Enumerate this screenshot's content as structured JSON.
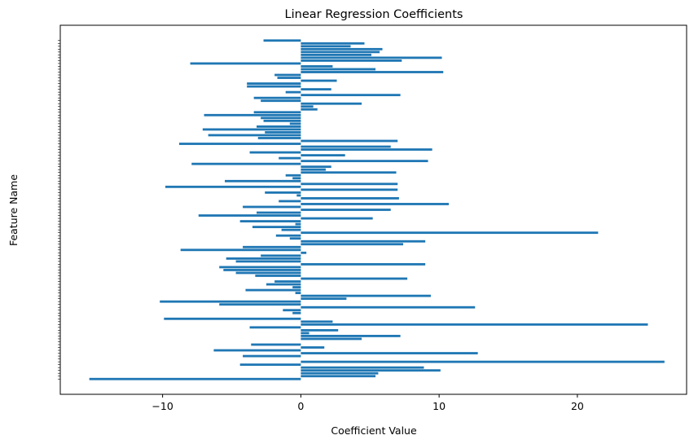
{
  "chart_data": {
    "type": "bar",
    "orientation": "horizontal",
    "title": "Linear Regression Coefficients",
    "xlabel": "Coefficient Value",
    "ylabel": "Feature Name",
    "xlim": [
      -17.4,
      27.9
    ],
    "xticks": [
      -10,
      0,
      10,
      20
    ],
    "xtick_labels": [
      "−10",
      "0",
      "10",
      "20"
    ],
    "bar_color": "#1f77b4",
    "grid": false,
    "values": [
      -15.3,
      5.4,
      5.6,
      10.1,
      8.9,
      -4.4,
      26.3,
      0.0,
      -4.2,
      12.8,
      -6.3,
      1.7,
      -3.6,
      0.0,
      4.4,
      7.2,
      0.6,
      2.7,
      -3.7,
      25.1,
      2.3,
      -9.9,
      0.0,
      -0.6,
      -1.3,
      12.6,
      -5.9,
      -10.2,
      3.3,
      9.4,
      -0.4,
      -4.0,
      -0.6,
      -2.5,
      -1.9,
      7.7,
      -3.3,
      -4.7,
      -5.6,
      -5.9,
      9.0,
      -4.7,
      -5.4,
      -2.9,
      0.4,
      -8.7,
      -4.2,
      7.4,
      9.0,
      -0.8,
      -1.8,
      21.5,
      -1.4,
      -3.5,
      -0.4,
      -4.4,
      5.2,
      -7.4,
      -3.2,
      6.5,
      -4.2,
      10.7,
      -1.6,
      7.1,
      -0.3,
      -2.6,
      7.0,
      -9.8,
      7.0,
      -5.5,
      -0.6,
      -1.1,
      6.9,
      1.8,
      2.2,
      -7.9,
      9.2,
      -1.6,
      3.2,
      -3.7,
      9.5,
      6.5,
      -8.8,
      7.0,
      -3.1,
      -6.7,
      -2.6,
      -7.1,
      -3.2,
      -0.8,
      -2.7,
      -2.9,
      -7.0,
      -3.4,
      1.2,
      0.9,
      4.4,
      -2.9,
      -3.4,
      7.2,
      -1.1,
      2.2,
      -3.9,
      -3.9,
      2.6,
      -1.7,
      -1.9,
      10.3,
      5.4,
      2.3,
      -8.0,
      7.3,
      10.2,
      5.1,
      5.7,
      5.9,
      3.6,
      4.6,
      -2.7
    ]
  }
}
